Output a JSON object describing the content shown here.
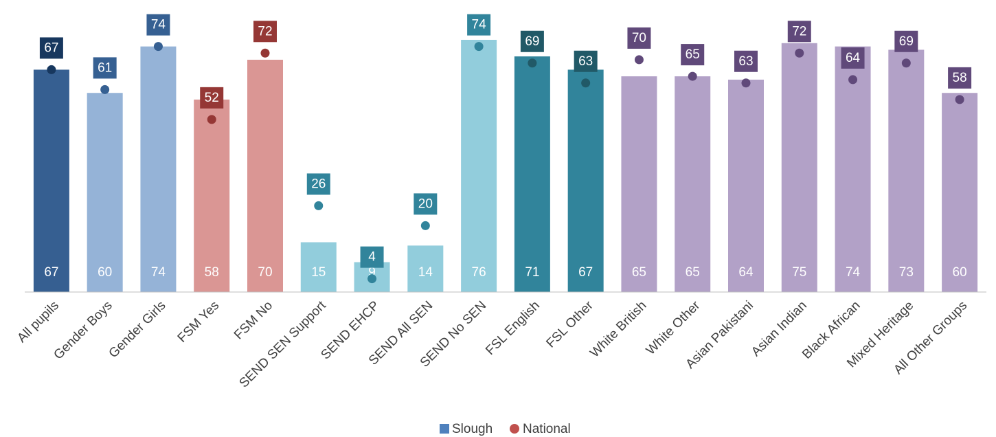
{
  "chart_data": {
    "type": "bar",
    "categories": [
      "All pupils",
      "Gender Boys",
      "Gender Girls",
      "FSM Yes",
      "FSM No",
      "SEND SEN Support",
      "SEND EHCP",
      "SEND All SEN",
      "SEND No SEN",
      "FSL English",
      "FSL Other",
      "White British",
      "White Other",
      "Asian Pakistani",
      "Asian Indian",
      "Black African",
      "Mixed Heritage",
      "All Other Groups"
    ],
    "series": [
      {
        "name": "Slough",
        "type": "bar",
        "color": "#4f81bd",
        "colors": [
          "#365f91",
          "#95b3d7",
          "#95b3d7",
          "#da9694",
          "#da9694",
          "#92cddc",
          "#92cddc",
          "#92cddc",
          "#92cddc",
          "#31849b",
          "#31849b",
          "#b2a1c7",
          "#b2a1c7",
          "#b2a1c7",
          "#b2a1c7",
          "#b2a1c7",
          "#b2a1c7",
          "#b2a1c7"
        ],
        "values": [
          67,
          60,
          74,
          58,
          70,
          15,
          9,
          14,
          76,
          71,
          67,
          65,
          65,
          64,
          75,
          74,
          73,
          60
        ]
      },
      {
        "name": "National",
        "type": "dot",
        "color": "#c0504d",
        "colors": [
          "#17375e",
          "#366092",
          "#366092",
          "#953735",
          "#953735",
          "#31849b",
          "#31849b",
          "#31849b",
          "#31849b",
          "#215967",
          "#215967",
          "#60497a",
          "#60497a",
          "#60497a",
          "#60497a",
          "#60497a",
          "#60497a",
          "#60497a"
        ],
        "values": [
          67,
          61,
          74,
          52,
          72,
          26,
          4,
          20,
          74,
          69,
          63,
          70,
          65,
          63,
          72,
          64,
          69,
          58
        ]
      }
    ],
    "ylim": [
      0,
      88
    ]
  }
}
